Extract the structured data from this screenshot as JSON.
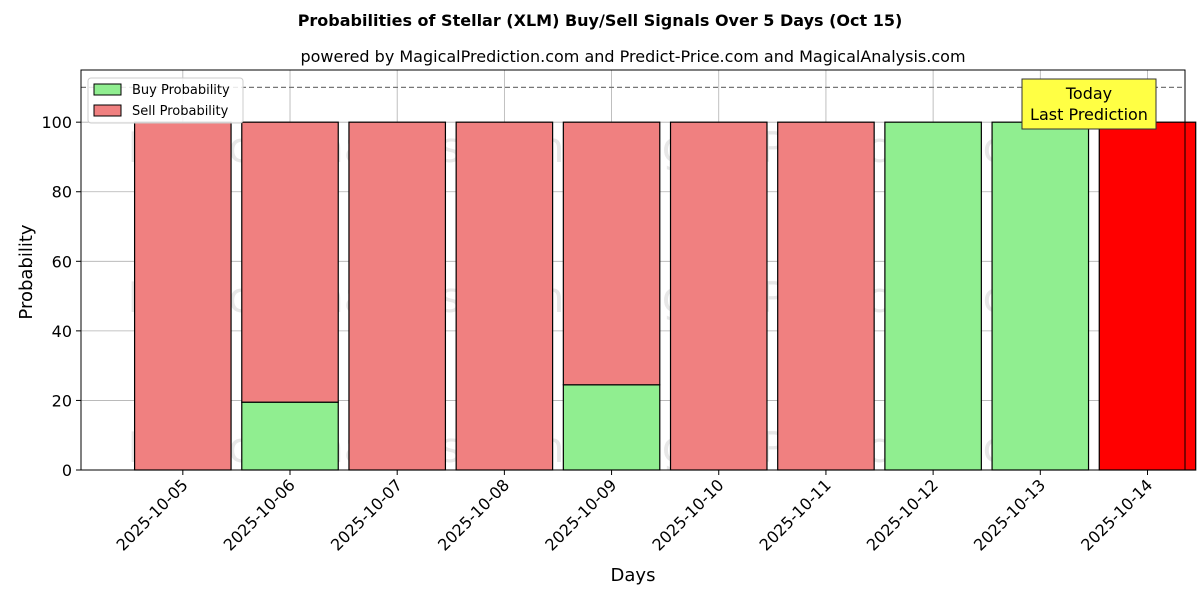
{
  "chart_data": {
    "type": "bar",
    "stacked": true,
    "title": "Probabilities of Stellar (XLM) Buy/Sell Signals Over 5 Days (Oct 15)",
    "subtitle": "powered by MagicalPrediction.com and Predict-Price.com and MagicalAnalysis.com",
    "xlabel": "Days",
    "ylabel": "Probability",
    "ylim": [
      0,
      115
    ],
    "yticks": [
      0,
      20,
      40,
      60,
      80,
      100
    ],
    "reference_line": 110,
    "grid": true,
    "legend_position": "top-left",
    "categories": [
      "2025-10-05",
      "2025-10-06",
      "2025-10-07",
      "2025-10-08",
      "2025-10-09",
      "2025-10-10",
      "2025-10-11",
      "2025-10-12",
      "2025-10-13",
      "2025-10-14"
    ],
    "series": [
      {
        "name": "Buy Probability",
        "color": "#90ee90",
        "values": [
          0,
          19.5,
          0,
          0,
          24.5,
          0,
          0,
          100,
          100,
          0
        ]
      },
      {
        "name": "Sell Probability",
        "color": "#f08080",
        "values": [
          100,
          80.5,
          100,
          100,
          75.5,
          100,
          100,
          0,
          0,
          100
        ]
      }
    ],
    "highlight": {
      "index": 9,
      "color": "#ff0000"
    },
    "annotation": {
      "line1": "Today",
      "line2": "Last Prediction",
      "color": "#ffff44"
    },
    "watermarks": [
      "MagicalAnalysis.com",
      "MagicalPrediction.com"
    ]
  }
}
